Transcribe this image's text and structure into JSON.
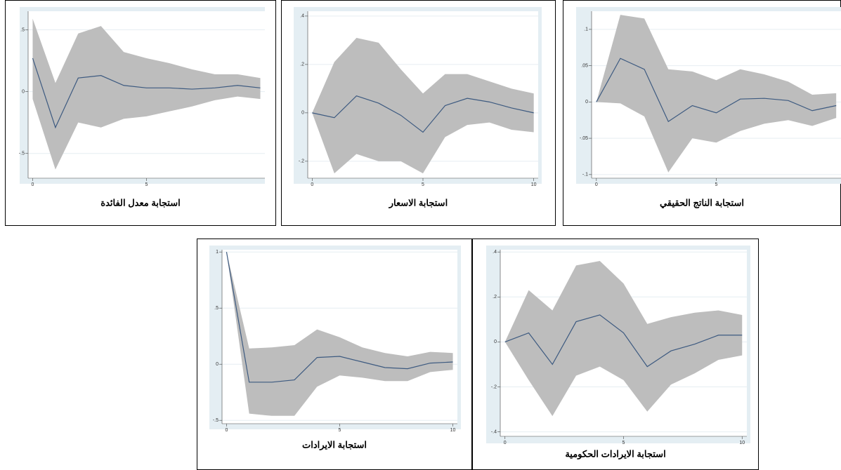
{
  "chart_data": [
    {
      "type": "line",
      "title": "استجابة معدل  الفائدة",
      "x": [
        0,
        1,
        2,
        3,
        4,
        5,
        6,
        7,
        8,
        9,
        10
      ],
      "values": [
        0.27,
        -0.29,
        0.11,
        0.13,
        0.05,
        0.03,
        0.03,
        0.02,
        0.03,
        0.05,
        0.03
      ],
      "upper": [
        0.59,
        0.07,
        0.47,
        0.53,
        0.32,
        0.27,
        0.23,
        0.18,
        0.14,
        0.14,
        0.11
      ],
      "lower": [
        -0.06,
        -0.63,
        -0.25,
        -0.29,
        -0.22,
        -0.2,
        -0.16,
        -0.12,
        -0.07,
        -0.04,
        -0.06
      ],
      "xlim": [
        -0.2,
        10.2
      ],
      "ylim": [
        -0.7,
        0.65
      ],
      "xticks": [
        0,
        5
      ],
      "yticks": [
        {
          "value": -0.5,
          "label": "-.5"
        },
        0,
        {
          "value": 0.5,
          "label": ".5"
        }
      ],
      "color": "#3d5a80",
      "band_color": "#bdbdbd",
      "grid": true
    },
    {
      "type": "line",
      "title": "استجابة الاسعار",
      "x": [
        0,
        1,
        2,
        3,
        4,
        5,
        6,
        7,
        8,
        9,
        10
      ],
      "values": [
        0,
        -0.02,
        0.07,
        0.04,
        -0.01,
        -0.08,
        0.03,
        0.06,
        0.045,
        0.02,
        0
      ],
      "upper": [
        0,
        0.21,
        0.31,
        0.29,
        0.18,
        0.08,
        0.16,
        0.16,
        0.13,
        0.1,
        0.08
      ],
      "lower": [
        0,
        -0.25,
        -0.17,
        -0.2,
        -0.2,
        -0.25,
        -0.1,
        -0.05,
        -0.04,
        -0.07,
        -0.08
      ],
      "xlim": [
        -0.2,
        10.2
      ],
      "ylim": [
        -0.27,
        0.42
      ],
      "xticks": [
        0,
        5,
        10
      ],
      "yticks": [
        {
          "value": -0.2,
          "label": "-.2"
        },
        0,
        {
          "value": 0.2,
          "label": ".2"
        },
        {
          "value": 0.4,
          "label": ".4"
        }
      ],
      "color": "#3d5a80",
      "band_color": "#bdbdbd",
      "grid": true
    },
    {
      "type": "line",
      "title": "استجابة الناتج الحقيقي",
      "x": [
        0,
        1,
        2,
        3,
        4,
        5,
        6,
        7,
        8,
        9,
        10
      ],
      "values": [
        0,
        0.06,
        0.045,
        -0.027,
        -0.005,
        -0.015,
        0.004,
        0.005,
        0.002,
        -0.012,
        -0.005
      ],
      "upper": [
        0,
        0.12,
        0.115,
        0.045,
        0.042,
        0.03,
        0.045,
        0.038,
        0.028,
        0.01,
        0.012
      ],
      "lower": [
        0,
        -0.002,
        -0.02,
        -0.097,
        -0.05,
        -0.056,
        -0.04,
        -0.03,
        -0.025,
        -0.033,
        -0.022
      ],
      "xlim": [
        -0.2,
        10.2
      ],
      "ylim": [
        -0.105,
        0.125
      ],
      "xticks": [
        0,
        5
      ],
      "yticks": [
        {
          "value": -0.1,
          "label": "-.1"
        },
        {
          "value": -0.05,
          "label": "-.05"
        },
        0,
        {
          "value": 0.05,
          "label": ".05"
        },
        {
          "value": 0.1,
          "label": ".1"
        }
      ],
      "color": "#3d5a80",
      "band_color": "#bdbdbd",
      "grid": true
    },
    {
      "type": "line",
      "title": "استجابة الايرادات",
      "x": [
        0,
        1,
        2,
        3,
        4,
        5,
        6,
        7,
        8,
        9,
        10
      ],
      "values": [
        1,
        -0.16,
        -0.16,
        -0.14,
        0.06,
        0.07,
        0.02,
        -0.03,
        -0.04,
        0.01,
        0.02
      ],
      "upper": [
        1,
        0.14,
        0.15,
        0.17,
        0.31,
        0.24,
        0.15,
        0.1,
        0.07,
        0.11,
        0.1
      ],
      "lower": [
        1,
        -0.44,
        -0.46,
        -0.46,
        -0.2,
        -0.1,
        -0.12,
        -0.15,
        -0.15,
        -0.07,
        -0.05
      ],
      "xlim": [
        -0.2,
        10.2
      ],
      "ylim": [
        -0.53,
        1.02
      ],
      "xticks": [
        0,
        5,
        10
      ],
      "yticks": [
        {
          "value": -0.5,
          "label": "-.5"
        },
        0,
        {
          "value": 0.5,
          "label": ".5"
        },
        1
      ],
      "color": "#3d5a80",
      "band_color": "#bdbdbd",
      "grid": true
    },
    {
      "type": "line",
      "title": "استجابة الايرادات الحكومية",
      "x": [
        0,
        1,
        2,
        3,
        4,
        5,
        6,
        7,
        8,
        9,
        10
      ],
      "values": [
        0,
        0.04,
        -0.1,
        0.09,
        0.12,
        0.04,
        -0.11,
        -0.04,
        -0.01,
        0.03,
        0.03
      ],
      "upper": [
        0,
        0.23,
        0.14,
        0.34,
        0.36,
        0.26,
        0.08,
        0.11,
        0.13,
        0.14,
        0.12
      ],
      "lower": [
        0,
        -0.17,
        -0.33,
        -0.15,
        -0.11,
        -0.17,
        -0.31,
        -0.19,
        -0.14,
        -0.08,
        -0.06
      ],
      "xlim": [
        -0.2,
        10.2
      ],
      "ylim": [
        -0.42,
        0.41
      ],
      "xticks": [
        0,
        5,
        10
      ],
      "yticks": [
        {
          "value": -0.4,
          "label": "-.4"
        },
        {
          "value": -0.2,
          "label": "-.2"
        },
        0,
        {
          "value": 0.2,
          "label": ".2"
        },
        {
          "value": 0.4,
          "label": ".4"
        }
      ],
      "color": "#3d5a80",
      "band_color": "#bdbdbd",
      "grid": true
    }
  ]
}
